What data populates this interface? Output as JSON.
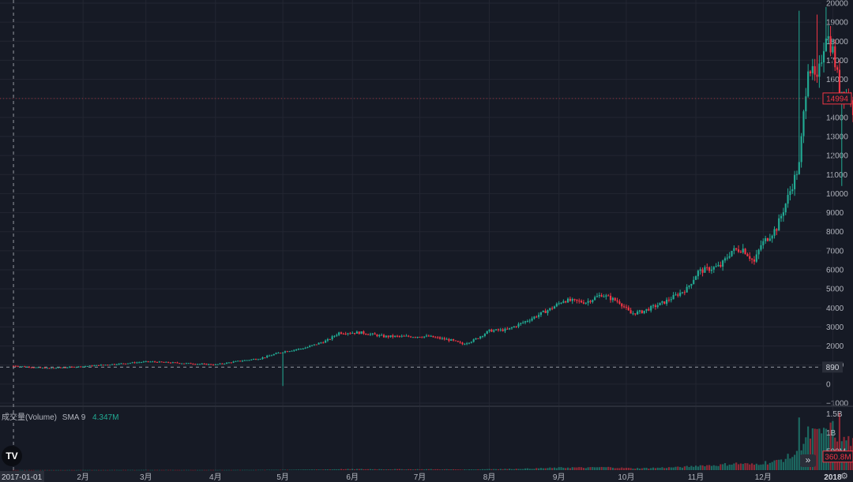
{
  "chart_data": {
    "type": "candlestick",
    "price_axis": {
      "ticks": [
        20000,
        19000,
        18000,
        17000,
        16000,
        15000,
        14000,
        13000,
        12000,
        11000,
        10000,
        9000,
        8000,
        7000,
        6000,
        5000,
        4000,
        3000,
        2000,
        1000,
        0,
        -1000
      ],
      "tick_labels": [
        "20000",
        "19000",
        "18000",
        "17000",
        "16000",
        "",
        "14000",
        "13000",
        "12000",
        "11000",
        "10000",
        "9000",
        "8000",
        "7000",
        "6000",
        "5000",
        "4000",
        "3000",
        "2000",
        "1000",
        "0",
        "−1000"
      ],
      "range": [
        -1000,
        20000
      ]
    },
    "time_axis": {
      "labels": [
        "2017-01-01",
        "2月",
        "3月",
        "4月",
        "5月",
        "6月",
        "7月",
        "8月",
        "9月",
        "10月",
        "11月",
        "12月",
        "2018"
      ],
      "range_days": [
        -6,
        374
      ]
    },
    "price_line": {
      "value": 890,
      "label": "890"
    },
    "last_price": {
      "value": 14994,
      "label": "14994"
    },
    "anchors": [
      [
        0,
        960
      ],
      [
        15,
        830
      ],
      [
        30,
        920
      ],
      [
        45,
        1050
      ],
      [
        60,
        1180
      ],
      [
        75,
        1100
      ],
      [
        90,
        1020
      ],
      [
        100,
        1200
      ],
      [
        110,
        1350
      ],
      [
        120,
        1700
      ],
      [
        130,
        1900
      ],
      [
        140,
        2300
      ],
      [
        145,
        2700
      ],
      [
        155,
        2700
      ],
      [
        165,
        2500
      ],
      [
        175,
        2500
      ],
      [
        185,
        2500
      ],
      [
        195,
        2300
      ],
      [
        200,
        2100
      ],
      [
        205,
        2300
      ],
      [
        212,
        2800
      ],
      [
        220,
        2850
      ],
      [
        230,
        3400
      ],
      [
        240,
        4000
      ],
      [
        245,
        4400
      ],
      [
        255,
        4300
      ],
      [
        262,
        4700
      ],
      [
        270,
        4300
      ],
      [
        275,
        3700
      ],
      [
        280,
        3800
      ],
      [
        290,
        4300
      ],
      [
        300,
        5000
      ],
      [
        305,
        5900
      ],
      [
        315,
        6200
      ],
      [
        320,
        7000
      ],
      [
        325,
        7100
      ],
      [
        330,
        6400
      ],
      [
        333,
        7300
      ],
      [
        340,
        8200
      ],
      [
        345,
        9800
      ],
      [
        350,
        11500
      ],
      [
        354,
        16800
      ],
      [
        358,
        15800
      ],
      [
        362,
        18500
      ],
      [
        365,
        17500
      ],
      [
        368,
        15500
      ],
      [
        372,
        15200
      ],
      [
        375,
        14000
      ],
      [
        378,
        16400
      ],
      [
        381,
        17100
      ],
      [
        384,
        14994
      ]
    ],
    "spikes": [
      {
        "day": 120,
        "low": -100
      },
      {
        "day": 350,
        "high": 19600
      },
      {
        "day": 358,
        "high": 19400
      },
      {
        "day": 362,
        "high": 19800
      },
      {
        "day": 369,
        "low": 10400
      },
      {
        "day": 375,
        "low": 12600
      }
    ],
    "volume": {
      "title": "成交量(Volume)",
      "sma_label": "SMA 9",
      "sma_value": "4.347M",
      "axis_labels": [
        "1.5B",
        "1B",
        "500M"
      ],
      "axis_values": [
        1500000000,
        1000000000,
        500000000
      ],
      "last_value": {
        "value": 360800000,
        "label": "360.8M"
      },
      "peaks": [
        {
          "day": 350,
          "value": 1400000000
        },
        {
          "day": 362,
          "value": 1100000000
        },
        {
          "day": 368,
          "value": 1530000000
        }
      ]
    },
    "colors": {
      "up": "#22ab94",
      "down": "#f23645",
      "background": "#161a25",
      "grid": "#232632",
      "text": "#b2b5be"
    }
  },
  "ui": {
    "logo_text": "TV",
    "scroll_icon": "double-chevron-right-icon",
    "settings_icon": "gear-icon"
  }
}
